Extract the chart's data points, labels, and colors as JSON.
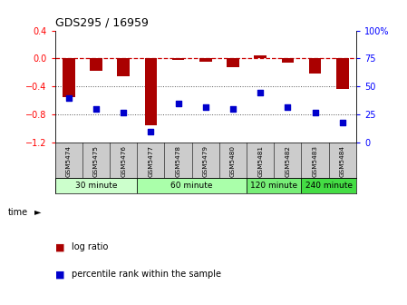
{
  "title": "GDS295 / 16959",
  "samples": [
    "GSM5474",
    "GSM5475",
    "GSM5476",
    "GSM5477",
    "GSM5478",
    "GSM5479",
    "GSM5480",
    "GSM5481",
    "GSM5482",
    "GSM5483",
    "GSM5484"
  ],
  "log_ratio": [
    -0.55,
    -0.18,
    -0.25,
    -0.95,
    -0.02,
    -0.05,
    -0.12,
    0.04,
    -0.06,
    -0.22,
    -0.43
  ],
  "percentile_rank": [
    40,
    30,
    27,
    10,
    35,
    32,
    30,
    45,
    32,
    27,
    18
  ],
  "groups": [
    {
      "label": "30 minute",
      "indices": [
        0,
        1,
        2
      ],
      "color": "#ccffcc"
    },
    {
      "label": "60 minute",
      "indices": [
        3,
        4,
        5,
        6
      ],
      "color": "#aaffaa"
    },
    {
      "label": "120 minute",
      "indices": [
        7,
        8
      ],
      "color": "#77ee77"
    },
    {
      "label": "240 minute",
      "indices": [
        9,
        10
      ],
      "color": "#44dd44"
    }
  ],
  "left_ylim": [
    -1.2,
    0.4
  ],
  "right_ylim": [
    0,
    100
  ],
  "left_yticks": [
    -1.2,
    -0.8,
    -0.4,
    0,
    0.4
  ],
  "right_yticks": [
    0,
    25,
    50,
    75,
    100
  ],
  "bar_color": "#aa0000",
  "scatter_color": "#0000cc",
  "hline_color": "#cc0000",
  "dotted_color": "#555555",
  "background_color": "#ffffff",
  "sample_bg": "#cccccc",
  "legend_bar_label": "log ratio",
  "legend_scatter_label": "percentile rank within the sample",
  "time_label": "time"
}
